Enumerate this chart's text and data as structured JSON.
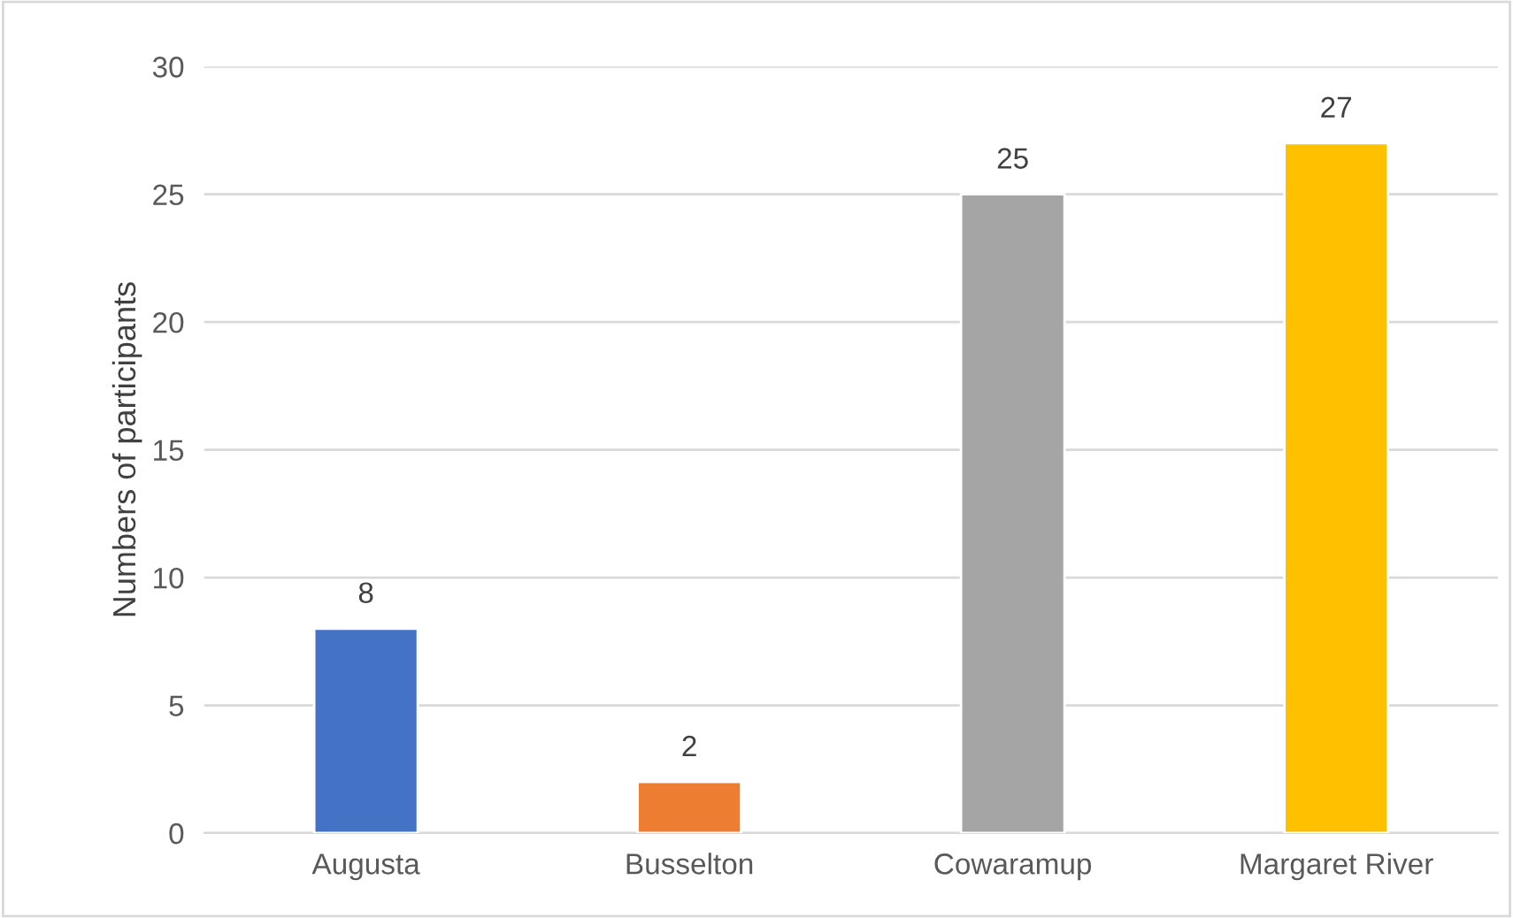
{
  "chart_data": {
    "type": "bar",
    "ylabel": "Numbers of participants",
    "categories": [
      "Augusta",
      "Busselton",
      "Cowaramup",
      "Margaret River"
    ],
    "values": [
      8,
      2,
      25,
      27
    ],
    "colors": [
      "#4472c4",
      "#ed7d31",
      "#a5a5a5",
      "#ffc000"
    ],
    "ylim": [
      0,
      30
    ],
    "yticks": [
      0,
      5,
      10,
      15,
      20,
      25,
      30
    ],
    "grid": "y",
    "data_labels": true
  }
}
